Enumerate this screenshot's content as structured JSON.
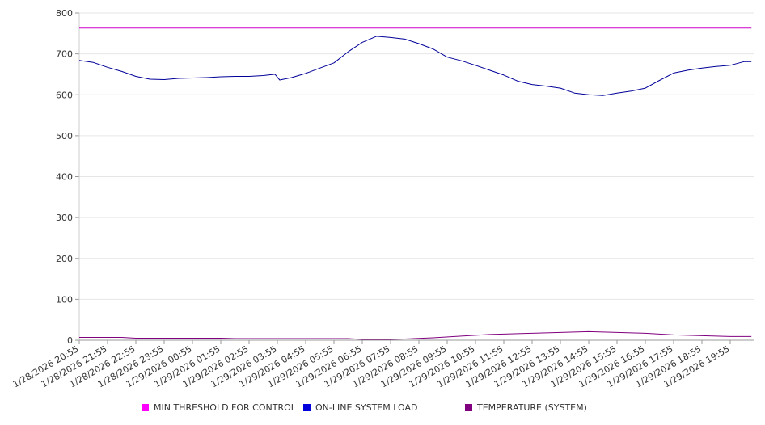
{
  "chart_data": {
    "type": "line",
    "ylim": [
      0,
      800
    ],
    "yticks": [
      "0",
      "100",
      "200",
      "300",
      "400",
      "500",
      "600",
      "700",
      "800"
    ],
    "grid": true,
    "legend_position": "bottom",
    "x_tick_labels": [
      "1/28/2026 20:55",
      "1/28/2026 21:55",
      "1/28/2026 22:55",
      "1/28/2026 23:55",
      "1/29/2026 00:55",
      "1/29/2026 01:55",
      "1/29/2026 02:55",
      "1/29/2026 03:55",
      "1/29/2026 04:55",
      "1/29/2026 05:55",
      "1/29/2026 06:55",
      "1/29/2026 07:55",
      "1/29/2026 08:55",
      "1/29/2026 09:55",
      "1/29/2026 10:55",
      "1/29/2026 11:55",
      "1/29/2026 12:55",
      "1/29/2026 13:55",
      "1/29/2026 14:55",
      "1/29/2026 15:55",
      "1/29/2026 16:55",
      "1/29/2026 17:55",
      "1/29/2026 18:55",
      "1/29/2026 19:55"
    ],
    "series": [
      {
        "name": "MIN THRESHOLD FOR CONTROL",
        "color": "#cc00cc",
        "points": [
          [
            "1/28/2026 20:55",
            763
          ],
          [
            "1/29/2026 20:40",
            763
          ]
        ]
      },
      {
        "name": "ON-LINE SYSTEM LOAD",
        "color": "#000099",
        "points": [
          [
            "1/28/2026 20:55",
            684
          ],
          [
            "1/28/2026 21:25",
            679
          ],
          [
            "1/28/2026 21:55",
            667
          ],
          [
            "1/28/2026 22:25",
            657
          ],
          [
            "1/28/2026 22:55",
            645
          ],
          [
            "1/28/2026 23:25",
            638
          ],
          [
            "1/28/2026 23:55",
            637
          ],
          [
            "1/29/2026 00:25",
            640
          ],
          [
            "1/29/2026 00:55",
            641
          ],
          [
            "1/29/2026 01:25",
            642
          ],
          [
            "1/29/2026 01:55",
            644
          ],
          [
            "1/29/2026 02:25",
            645
          ],
          [
            "1/29/2026 02:55",
            645
          ],
          [
            "1/29/2026 03:25",
            647
          ],
          [
            "1/29/2026 03:50",
            650
          ],
          [
            "1/29/2026 04:00",
            636
          ],
          [
            "1/29/2026 04:25",
            642
          ],
          [
            "1/29/2026 04:55",
            652
          ],
          [
            "1/29/2026 05:25",
            665
          ],
          [
            "1/29/2026 05:55",
            678
          ],
          [
            "1/29/2026 06:25",
            705
          ],
          [
            "1/29/2026 06:55",
            728
          ],
          [
            "1/29/2026 07:25",
            743
          ],
          [
            "1/29/2026 07:55",
            740
          ],
          [
            "1/29/2026 08:25",
            736
          ],
          [
            "1/29/2026 08:55",
            725
          ],
          [
            "1/29/2026 09:25",
            712
          ],
          [
            "1/29/2026 09:55",
            692
          ],
          [
            "1/29/2026 10:25",
            683
          ],
          [
            "1/29/2026 10:55",
            672
          ],
          [
            "1/29/2026 11:25",
            660
          ],
          [
            "1/29/2026 11:55",
            648
          ],
          [
            "1/29/2026 12:25",
            633
          ],
          [
            "1/29/2026 12:55",
            625
          ],
          [
            "1/29/2026 13:25",
            621
          ],
          [
            "1/29/2026 13:55",
            616
          ],
          [
            "1/29/2026 14:25",
            604
          ],
          [
            "1/29/2026 14:55",
            600
          ],
          [
            "1/29/2026 15:25",
            598
          ],
          [
            "1/29/2026 15:55",
            604
          ],
          [
            "1/29/2026 16:25",
            609
          ],
          [
            "1/29/2026 16:55",
            616
          ],
          [
            "1/29/2026 17:25",
            635
          ],
          [
            "1/29/2026 17:55",
            653
          ],
          [
            "1/29/2026 18:25",
            660
          ],
          [
            "1/29/2026 18:55",
            665
          ],
          [
            "1/29/2026 19:25",
            669
          ],
          [
            "1/29/2026 19:55",
            672
          ],
          [
            "1/29/2026 20:25",
            681
          ],
          [
            "1/29/2026 20:40",
            681
          ]
        ]
      },
      {
        "name": "TEMPERATURE (SYSTEM)",
        "color": "#800080",
        "points": [
          [
            "1/28/2026 20:55",
            7
          ],
          [
            "1/28/2026 22:25",
            7
          ],
          [
            "1/28/2026 22:55",
            5
          ],
          [
            "1/29/2026 01:55",
            5
          ],
          [
            "1/29/2026 02:25",
            4
          ],
          [
            "1/29/2026 06:25",
            4
          ],
          [
            "1/29/2026 06:55",
            2
          ],
          [
            "1/29/2026 07:55",
            2
          ],
          [
            "1/29/2026 08:25",
            3
          ],
          [
            "1/29/2026 09:25",
            6
          ],
          [
            "1/29/2026 10:25",
            10
          ],
          [
            "1/29/2026 11:25",
            14
          ],
          [
            "1/29/2026 12:55",
            17
          ],
          [
            "1/29/2026 13:55",
            19
          ],
          [
            "1/29/2026 14:55",
            21
          ],
          [
            "1/29/2026 15:55",
            19
          ],
          [
            "1/29/2026 16:55",
            17
          ],
          [
            "1/29/2026 17:55",
            13
          ],
          [
            "1/29/2026 18:55",
            11
          ],
          [
            "1/29/2026 19:55",
            9
          ],
          [
            "1/29/2026 20:40",
            9
          ]
        ]
      }
    ]
  }
}
